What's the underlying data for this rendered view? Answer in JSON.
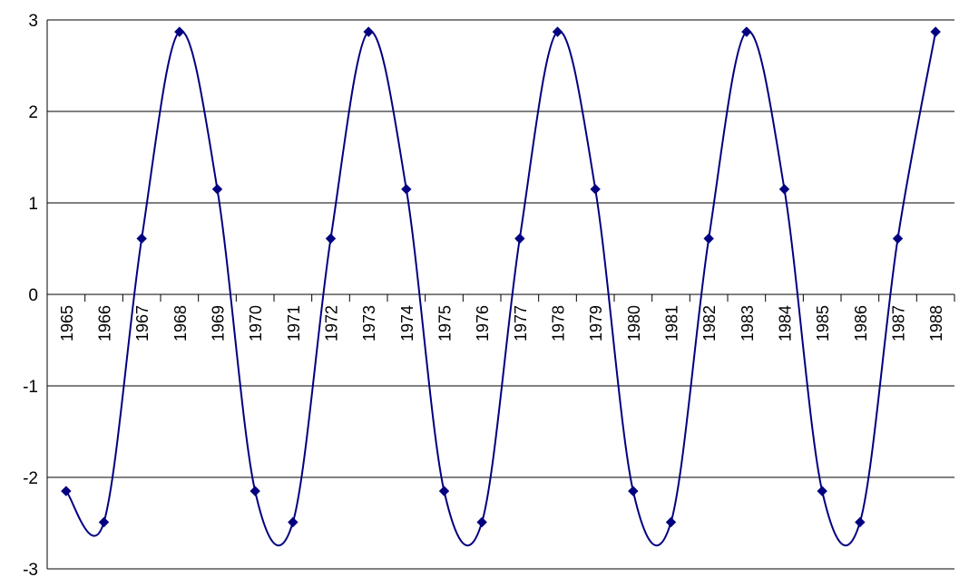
{
  "chart_data": {
    "type": "line",
    "title": "",
    "xlabel": "",
    "ylabel": "",
    "x": [
      "1965",
      "1966",
      "1967",
      "1968",
      "1969",
      "1970",
      "1971",
      "1972",
      "1973",
      "1974",
      "1975",
      "1976",
      "1977",
      "1978",
      "1979",
      "1980",
      "1981",
      "1982",
      "1983",
      "1984",
      "1985",
      "1986",
      "1987",
      "1988"
    ],
    "series": [
      {
        "values": [
          -2.15,
          -2.49,
          0.61,
          2.87,
          1.15,
          -2.15,
          -2.49,
          0.61,
          2.87,
          1.15,
          -2.15,
          -2.49,
          0.61,
          2.87,
          1.15,
          -2.15,
          -2.49,
          0.61,
          2.87,
          1.15,
          -2.15,
          -2.49,
          0.61,
          2.87
        ],
        "color": "#000080",
        "marker": "diamond",
        "smooth": true
      }
    ],
    "ylim": [
      -3,
      3
    ],
    "yticks": [
      3,
      2,
      1,
      0,
      -1,
      -2,
      -3
    ],
    "ytick_labels": [
      "3",
      "2",
      "1",
      "0",
      "-1",
      "-2",
      "-3"
    ],
    "grid": true
  }
}
